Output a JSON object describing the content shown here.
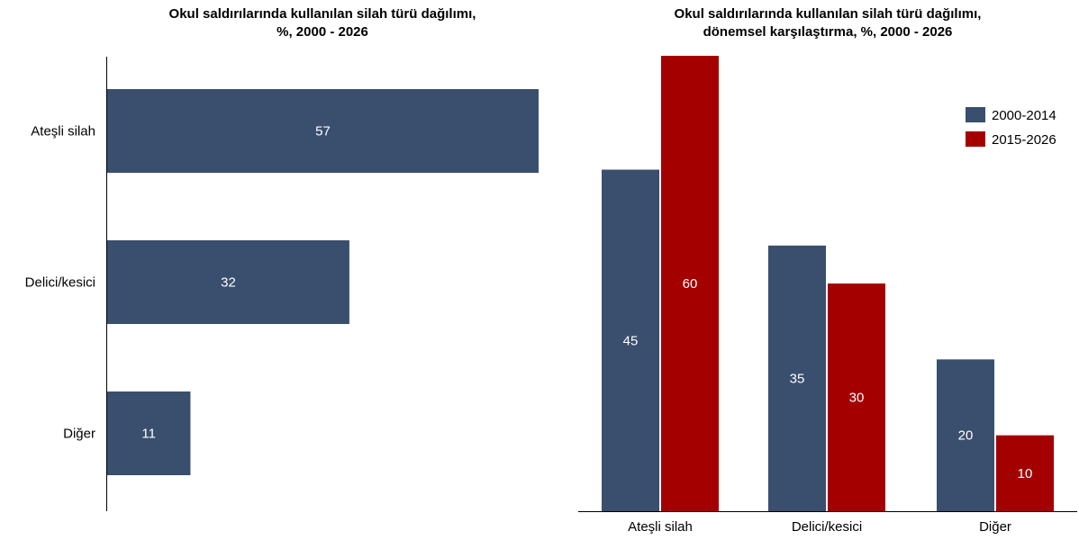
{
  "chart_data": [
    {
      "type": "bar",
      "orientation": "horizontal",
      "title": "Okul saldırılarında kullanılan silah türü dağılımı,",
      "subtitle": "%, 2000 - 2026",
      "categories": [
        "Ateşli silah",
        "Delici/kesici",
        "Diğer"
      ],
      "values": [
        57,
        32,
        11
      ],
      "xlim": [
        0,
        57
      ],
      "grid": false,
      "color": "#3a4e6e"
    },
    {
      "type": "bar",
      "orientation": "vertical",
      "title": "Okul saldırılarında kullanılan silah türü dağılımı,",
      "subtitle": "dönemsel karşılaştırma, %, 2000 - 2026",
      "categories": [
        "Ateşli silah",
        "Delici/kesici",
        "Diğer"
      ],
      "series": [
        {
          "name": "2000-2014",
          "values": [
            45,
            35,
            20
          ],
          "color": "#3a4e6e"
        },
        {
          "name": "2015-2026",
          "values": [
            60,
            30,
            10
          ],
          "color": "#a50000"
        }
      ],
      "ylim": [
        0,
        60
      ],
      "grid": false,
      "legend": "top-right"
    }
  ]
}
